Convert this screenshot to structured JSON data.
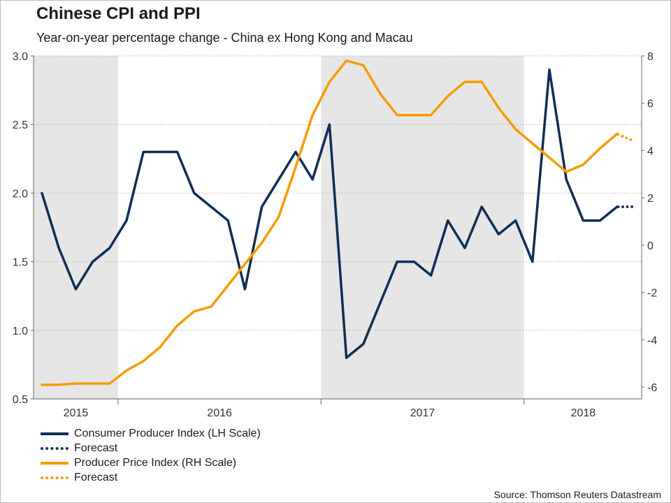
{
  "title": "Chinese CPI and PPI",
  "subtitle": "Year-on-year percentage change - China ex Hong Kong and Macau",
  "source": "Source: Thomson Reuters Datastream",
  "colors": {
    "cpi": "#0f2e55",
    "ppi": "#f59c00",
    "shade": "#e6e6e6",
    "grid": "#bfbfbf"
  },
  "chart_data": {
    "type": "line",
    "title": "Chinese CPI and PPI",
    "subtitle": "Year-on-year percentage change - China ex Hong Kong and Macau",
    "x_axis": {
      "labels": [
        "2015",
        "2016",
        "2017",
        "2018"
      ],
      "index_range": [
        0,
        35.5
      ],
      "year_boundaries": [
        4.5,
        16.5,
        28.5
      ],
      "label_centers": [
        2,
        10.5,
        22.5,
        32
      ],
      "shaded_ranges": [
        [
          0,
          4.5
        ],
        [
          16.5,
          28.5
        ]
      ]
    },
    "y_left": {
      "label": "LH Scale",
      "min": 0.5,
      "max": 3.0,
      "ticks": [
        "0.5",
        "1.0",
        "1.5",
        "2.0",
        "2.5",
        "3.0"
      ]
    },
    "y_right": {
      "label": "RH Scale",
      "min": -6.5,
      "max": 8,
      "ticks": [
        "-6",
        "-4",
        "-2",
        "0",
        "2",
        "4",
        "6",
        "8"
      ]
    },
    "series": [
      {
        "name": "Consumer Producer Index (LH Scale)",
        "axis": "left",
        "style": "solid",
        "color": "#0f2e55",
        "x": [
          0,
          1,
          2,
          3,
          4,
          5,
          6,
          7,
          8,
          9,
          10,
          11,
          12,
          13,
          14,
          15,
          16,
          17,
          18,
          19,
          20,
          21,
          22,
          23,
          24,
          25,
          26,
          27,
          28,
          29,
          30,
          31,
          32,
          33,
          34
        ],
        "values": [
          2.0,
          1.6,
          1.3,
          1.5,
          1.6,
          1.8,
          2.3,
          2.3,
          2.3,
          2.0,
          1.9,
          1.8,
          1.3,
          1.9,
          2.1,
          2.3,
          2.1,
          2.5,
          0.8,
          0.9,
          1.2,
          1.5,
          1.5,
          1.4,
          1.8,
          1.6,
          1.9,
          1.7,
          1.8,
          1.5,
          2.9,
          2.1,
          1.8,
          1.8,
          1.9
        ]
      },
      {
        "name": "Forecast",
        "axis": "left",
        "style": "dotted",
        "color": "#0f2e55",
        "x": [
          34,
          35
        ],
        "values": [
          1.9,
          1.9
        ]
      },
      {
        "name": "Producer Price Index (RH Scale)",
        "axis": "right",
        "style": "solid",
        "color": "#f59c00",
        "x": [
          0,
          1,
          2,
          3,
          4,
          5,
          6,
          7,
          8,
          9,
          10,
          11,
          12,
          13,
          14,
          15,
          16,
          17,
          18,
          19,
          20,
          21,
          22,
          23,
          24,
          25,
          26,
          27,
          28,
          29,
          30,
          31,
          32,
          33,
          34
        ],
        "values": [
          -5.9,
          -5.9,
          -5.85,
          -5.85,
          -5.85,
          -5.3,
          -4.9,
          -4.3,
          -3.4,
          -2.8,
          -2.6,
          -1.7,
          -0.8,
          0.1,
          1.2,
          3.3,
          5.5,
          6.9,
          7.8,
          7.6,
          6.4,
          5.5,
          5.5,
          5.5,
          6.3,
          6.9,
          6.9,
          5.8,
          4.9,
          4.3,
          3.7,
          3.1,
          3.4,
          4.1,
          4.7
        ]
      },
      {
        "name": "Forecast",
        "axis": "right",
        "style": "dotted",
        "color": "#f59c00",
        "x": [
          34,
          35
        ],
        "values": [
          4.7,
          4.4
        ]
      }
    ]
  },
  "legend": [
    {
      "label": "Consumer Producer Index (LH Scale)",
      "style": "solid",
      "color": "#0f2e55"
    },
    {
      "label": "Forecast",
      "style": "dotted",
      "color": "#0f2e55"
    },
    {
      "label": "Producer Price Index (RH Scale)",
      "style": "solid",
      "color": "#f59c00"
    },
    {
      "label": "Forecast",
      "style": "dotted",
      "color": "#f59c00"
    }
  ]
}
